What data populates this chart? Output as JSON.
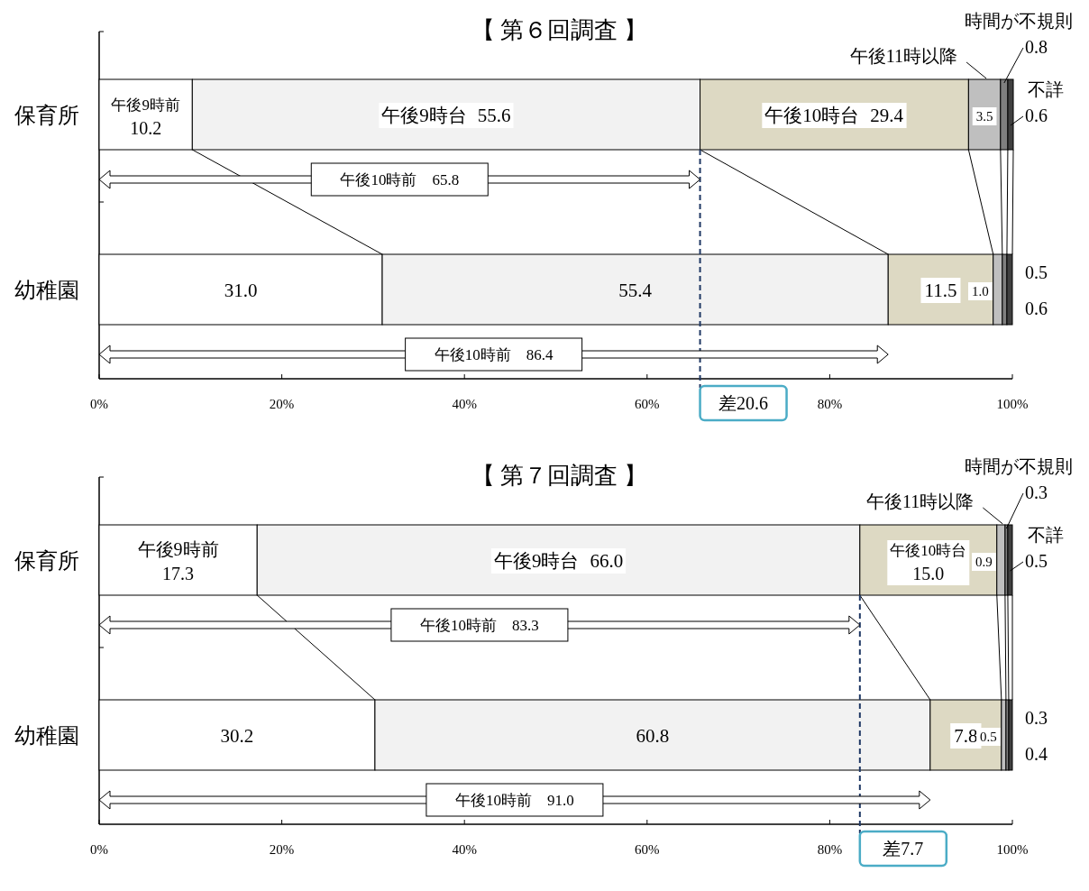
{
  "chart_data": [
    {
      "type": "bar",
      "orientation": "horizontal",
      "stacked": true,
      "title": "【 第６回調査 】",
      "categories": [
        "保育所",
        "幼稚園"
      ],
      "series": [
        {
          "name": "午後9時前",
          "color": "#ffffff",
          "values": [
            10.2,
            31.0
          ],
          "value_labels": [
            "10.2",
            "31.0"
          ]
        },
        {
          "name": "午後9時台",
          "color": "#f2f2f2",
          "values": [
            55.6,
            55.4
          ],
          "value_labels": [
            "55.6",
            "55.4"
          ]
        },
        {
          "name": "午後10時台",
          "color": "#ddd9c3",
          "values": [
            29.4,
            11.5
          ],
          "value_labels": [
            "29.4",
            "11.5"
          ]
        },
        {
          "name": "午後11時以降",
          "color": "#bfbfbf",
          "values": [
            3.5,
            1.0
          ],
          "value_labels": [
            "3.5",
            "1.0"
          ]
        },
        {
          "name": "時間が不規則",
          "color": "#7f7f7f",
          "values": [
            0.8,
            0.5
          ],
          "value_labels": [
            "0.8",
            "0.5"
          ]
        },
        {
          "name": "不詳",
          "color": "#404040",
          "values": [
            0.6,
            0.6
          ],
          "value_labels": [
            "0.6",
            "0.6"
          ]
        }
      ],
      "xlim": [
        0,
        100
      ],
      "xticks": [
        {
          "value": 0,
          "label": "0%"
        },
        {
          "value": 20,
          "label": "20%"
        },
        {
          "value": 40,
          "label": "40%"
        },
        {
          "value": 60,
          "label": "60%"
        },
        {
          "value": 80,
          "label": "80%"
        },
        {
          "value": 100,
          "label": "100%"
        }
      ],
      "annotations": [
        "午後10時前　65.8",
        "午後10時前　86.4"
      ],
      "ref_lines": [
        {
          "axis": "x",
          "value": 65.8,
          "label": "差20.6",
          "color": "#1f3864",
          "line_style": "dashed"
        }
      ]
    },
    {
      "type": "bar",
      "orientation": "horizontal",
      "stacked": true,
      "title": "【 第７回調査 】",
      "categories": [
        "保育所",
        "幼稚園"
      ],
      "series": [
        {
          "name": "午後9時前",
          "color": "#ffffff",
          "values": [
            17.3,
            30.2
          ],
          "value_labels": [
            "17.3",
            "30.2"
          ]
        },
        {
          "name": "午後9時台",
          "color": "#f2f2f2",
          "values": [
            66.0,
            60.8
          ],
          "value_labels": [
            "66.0",
            "60.8"
          ]
        },
        {
          "name": "午後10時台",
          "color": "#ddd9c3",
          "values": [
            15.0,
            7.8
          ],
          "value_labels": [
            "15.0",
            "7.8"
          ]
        },
        {
          "name": "午後11時以降",
          "color": "#bfbfbf",
          "values": [
            0.9,
            0.5
          ],
          "value_labels": [
            "0.9",
            "0.5"
          ]
        },
        {
          "name": "時間が不規則",
          "color": "#7f7f7f",
          "values": [
            0.3,
            0.3
          ],
          "value_labels": [
            "0.3",
            "0.3"
          ]
        },
        {
          "name": "不詳",
          "color": "#404040",
          "values": [
            0.5,
            0.4
          ],
          "value_labels": [
            "0.5",
            "0.4"
          ]
        }
      ],
      "xlim": [
        0,
        100
      ],
      "xticks": [
        {
          "value": 0,
          "label": "0%"
        },
        {
          "value": 20,
          "label": "20%"
        },
        {
          "value": 40,
          "label": "40%"
        },
        {
          "value": 60,
          "label": "60%"
        },
        {
          "value": 80,
          "label": "80%"
        },
        {
          "value": 100,
          "label": "100%"
        }
      ],
      "annotations": [
        "午後10時前　83.3",
        "午後10時前　91.0"
      ],
      "ref_lines": [
        {
          "axis": "x",
          "value": 83.3,
          "label": "差7.7",
          "color": "#1f3864",
          "line_style": "dashed"
        }
      ]
    }
  ]
}
